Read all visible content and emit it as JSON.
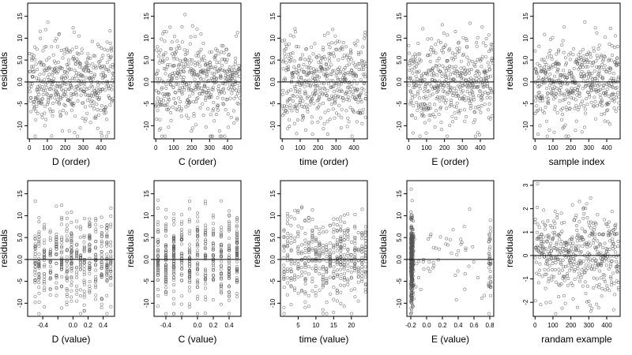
{
  "chart_data": [
    {
      "type": "scatter",
      "xlabel": "D (order)",
      "ylabel": "residuals",
      "xlim": [
        -10,
        475
      ],
      "ylim": [
        -13,
        18
      ],
      "xticks": [
        0,
        100,
        200,
        300,
        400
      ],
      "yticks": [
        -10,
        -5,
        0,
        5,
        10,
        15
      ],
      "ytick_labels": [
        "-10",
        "-5",
        "0.0",
        "5.0",
        "10",
        "15"
      ],
      "hline": 0,
      "n": 470,
      "xgen": "index",
      "ygen": "normal",
      "sd": 5,
      "seed": 11
    },
    {
      "type": "scatter",
      "xlabel": "C (order)",
      "ylabel": "residuals",
      "xlim": [
        -10,
        475
      ],
      "ylim": [
        -13,
        18
      ],
      "xticks": [
        0,
        100,
        200,
        300,
        400
      ],
      "yticks": [
        -10,
        -5,
        0,
        5,
        10,
        15
      ],
      "ytick_labels": [
        "-10",
        "-5",
        "0.0",
        "5.0",
        "10",
        "15"
      ],
      "hline": 0,
      "n": 470,
      "xgen": "index",
      "ygen": "normal",
      "sd": 5,
      "seed": 23
    },
    {
      "type": "scatter",
      "xlabel": "time (order)",
      "ylabel": "residuals",
      "xlim": [
        -10,
        475
      ],
      "ylim": [
        -13,
        18
      ],
      "xticks": [
        0,
        100,
        200,
        300,
        400
      ],
      "yticks": [
        -10,
        -5,
        0,
        5,
        10,
        15
      ],
      "ytick_labels": [
        "-10",
        "-5",
        "0.0",
        "5.0",
        "10",
        "15"
      ],
      "hline": 0,
      "n": 470,
      "xgen": "index",
      "ygen": "normal",
      "sd": 5,
      "seed": 37
    },
    {
      "type": "scatter",
      "xlabel": "E (order)",
      "ylabel": "residuals",
      "xlim": [
        -10,
        475
      ],
      "ylim": [
        -13,
        18
      ],
      "xticks": [
        0,
        100,
        200,
        300,
        400
      ],
      "yticks": [
        -10,
        -5,
        0,
        5,
        10,
        15
      ],
      "ytick_labels": [
        "-10",
        "-5",
        "0.0",
        "5.0",
        "10",
        "15"
      ],
      "hline": 0,
      "n": 470,
      "xgen": "index",
      "ygen": "normal",
      "sd": 5,
      "seed": 41
    },
    {
      "type": "scatter",
      "xlabel": "sample index",
      "ylabel": "residuals",
      "xlim": [
        -10,
        475
      ],
      "ylim": [
        -13,
        18
      ],
      "xticks": [
        0,
        100,
        200,
        300,
        400
      ],
      "yticks": [
        -10,
        -5,
        0,
        5,
        10,
        15
      ],
      "ytick_labels": [
        "-10",
        "-5",
        "0.0",
        "5.0",
        "10",
        "15"
      ],
      "hline": 0,
      "n": 470,
      "xgen": "index",
      "ygen": "normal",
      "sd": 5,
      "seed": 53
    },
    {
      "type": "scatter",
      "xlabel": "D (value)",
      "ylabel": "residuals",
      "xlim": [
        -0.6,
        0.55
      ],
      "ylim": [
        -13,
        18
      ],
      "xticks": [
        -0.4,
        -0.2,
        0,
        0.2,
        0.4
      ],
      "xtick_labels": [
        "-0.4",
        "",
        "0.0",
        "0.2",
        "0.4"
      ],
      "yticks": [
        -10,
        -5,
        0,
        5,
        10,
        15
      ],
      "ytick_labels": [
        "-10",
        "-5",
        "0.0",
        "5.0",
        "10",
        "15"
      ],
      "hline": 0,
      "n": 470,
      "xgen": "levels",
      "levels": [
        -0.5,
        -0.45,
        -0.38,
        -0.3,
        -0.22,
        -0.15,
        -0.08,
        -0.02,
        0.05,
        0.1,
        0.15,
        0.22,
        0.3,
        0.38,
        0.45,
        0.5
      ],
      "ygen": "normal",
      "sd": 5,
      "seed": 61
    },
    {
      "type": "scatter",
      "xlabel": "C (value)",
      "ylabel": "residuals",
      "xlim": [
        -0.55,
        0.55
      ],
      "ylim": [
        -13,
        18
      ],
      "xticks": [
        -0.4,
        -0.2,
        0,
        0.2,
        0.4
      ],
      "xtick_labels": [
        "-0.4",
        "",
        "0.0",
        "0.2",
        "0.4"
      ],
      "yticks": [
        -10,
        -5,
        0,
        5,
        10,
        15
      ],
      "ytick_labels": [
        "-10",
        "-5",
        "0.0",
        "5.0",
        "10",
        "15"
      ],
      "hline": 0,
      "n": 470,
      "xgen": "levels",
      "levels": [
        -0.5,
        -0.4,
        -0.3,
        -0.2,
        -0.1,
        0,
        0.1,
        0.2,
        0.3,
        0.4,
        0.5
      ],
      "ygen": "normal",
      "sd": 5,
      "seed": 67
    },
    {
      "type": "scatter",
      "xlabel": "time (value)",
      "ylabel": "residuals",
      "xlim": [
        0,
        24.5
      ],
      "ylim": [
        -13,
        18
      ],
      "xticks": [
        5,
        10,
        15,
        20
      ],
      "yticks": [
        -10,
        -5,
        0,
        5,
        10,
        15
      ],
      "ytick_labels": [
        "-10",
        "-5",
        "0.0",
        "5.0",
        "10",
        "15"
      ],
      "hline": 0,
      "n": 470,
      "xgen": "levels",
      "levels": [
        1,
        2,
        3,
        4,
        5,
        6,
        7,
        8,
        9,
        10,
        11,
        12,
        13,
        14,
        15,
        16,
        17,
        18,
        19,
        20,
        21,
        22,
        23,
        24
      ],
      "ygen": "normal",
      "sd": 5,
      "seed": 71
    },
    {
      "type": "scatter",
      "xlabel": "E (value)",
      "ylabel": "residuals",
      "xlim": [
        -0.25,
        0.85
      ],
      "ylim": [
        -13,
        18
      ],
      "xticks": [
        -0.2,
        0,
        0.2,
        0.4,
        0.6,
        0.8
      ],
      "xtick_labels": [
        "-0.2",
        "0.0",
        "0.2",
        "0.4",
        "0.6",
        "0.8"
      ],
      "yticks": [
        -10,
        -5,
        0,
        5,
        10,
        15
      ],
      "ytick_labels": [
        "-10",
        "-5",
        "0.0",
        "5.0",
        "10",
        "15"
      ],
      "hline": 0,
      "n": 470,
      "xgen": "skewed",
      "ygen": "normal",
      "sd": 5,
      "seed": 79
    },
    {
      "type": "scatter",
      "xlabel": "randam example",
      "ylabel": "residuals",
      "xlim": [
        -10,
        475
      ],
      "ylim": [
        -2.6,
        3.2
      ],
      "xticks": [
        0,
        100,
        200,
        300,
        400
      ],
      "yticks": [
        -2,
        -1,
        0,
        1,
        2,
        3
      ],
      "ytick_labels": [
        "-2",
        "-1",
        "0",
        "1",
        "2",
        "3"
      ],
      "hline": 0,
      "n": 470,
      "xgen": "index",
      "ygen": "normal",
      "sd": 1,
      "seed": 97
    }
  ]
}
